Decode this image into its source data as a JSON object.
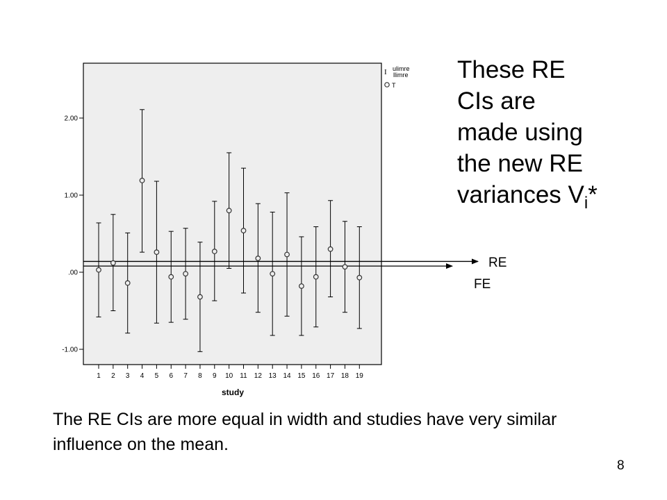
{
  "side_note": {
    "lines": [
      "These RE",
      "CIs are",
      "made using",
      "the new RE"
    ],
    "last_line_prefix": "variances V",
    "subscript": "i",
    "suffix": "*"
  },
  "caption": "The RE CIs are more equal in width and studies have very similar influence on the mean.",
  "page_number": "8",
  "labels": {
    "re": "RE",
    "fe": "FE"
  },
  "chart_data": {
    "type": "scatter",
    "xlabel": "study",
    "ylabel": "",
    "ylim": [
      -1.2,
      2.75
    ],
    "y_ticks": [
      2.0,
      1.0,
      0.0,
      -1.0
    ],
    "y_tick_labels": [
      "2.00",
      "1.00",
      ".00",
      "-1.00"
    ],
    "categories": [
      "1",
      "2",
      "3",
      "4",
      "5",
      "6",
      "7",
      "8",
      "9",
      "10",
      "11",
      "12",
      "13",
      "14",
      "15",
      "16",
      "17",
      "18",
      "19"
    ],
    "series": [
      {
        "name": "T",
        "values": [
          0.03,
          0.12,
          -0.14,
          1.19,
          0.26,
          -0.06,
          -0.02,
          -0.32,
          0.27,
          0.8,
          0.54,
          0.18,
          -0.02,
          0.23,
          -0.18,
          -0.06,
          0.3,
          0.07,
          -0.07
        ]
      },
      {
        "name": "ulimre",
        "values": [
          0.64,
          0.75,
          0.51,
          2.11,
          1.18,
          0.53,
          0.57,
          0.39,
          0.92,
          1.55,
          1.35,
          0.89,
          0.78,
          1.03,
          0.46,
          0.59,
          0.93,
          0.66,
          0.59
        ]
      },
      {
        "name": "llimre",
        "values": [
          -0.58,
          -0.5,
          -0.79,
          0.26,
          -0.66,
          -0.65,
          -0.61,
          -1.03,
          -0.37,
          0.05,
          -0.27,
          -0.52,
          -0.82,
          -0.57,
          -0.82,
          -0.71,
          -0.32,
          -0.52,
          -0.73
        ]
      }
    ],
    "legend": {
      "position": "top-right",
      "entries": [
        "ulimre",
        "llimre",
        "T"
      ]
    },
    "reference_lines": {
      "RE": 0.14,
      "FE": 0.08
    },
    "grid": false
  },
  "colors": {
    "plot_bg": "#eeeeee",
    "ink": "#000000",
    "marker": "#333333"
  }
}
